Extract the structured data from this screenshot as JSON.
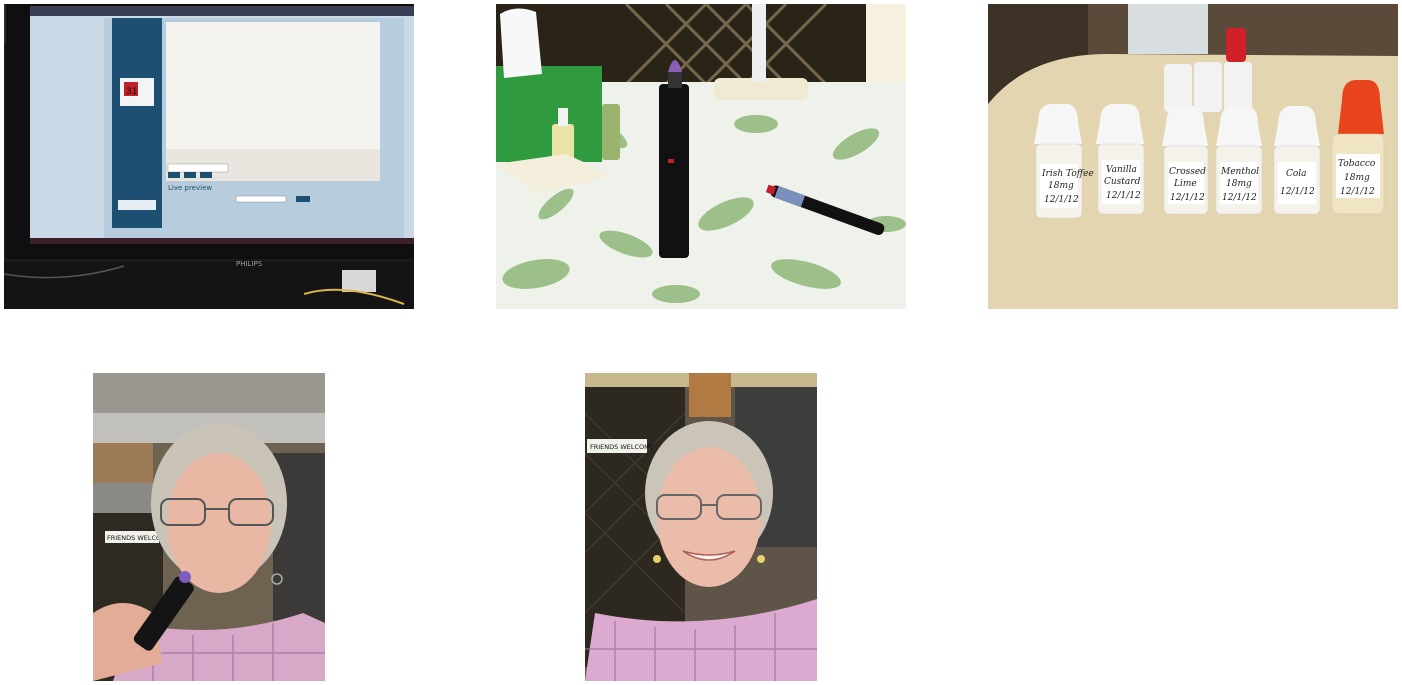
{
  "photos": [
    {
      "id": "monitor",
      "brand": "PHILIPS",
      "screen_heading": "Live preview",
      "screen_date": "31"
    },
    {
      "id": "ecig-table"
    },
    {
      "id": "liquid-bottles",
      "bottles": [
        {
          "line1": "Irish Toffee",
          "line2": "18mg",
          "line3": "12/1/12"
        },
        {
          "line1": "Vanilla",
          "line2": "Custard",
          "line3": "12/1/12"
        },
        {
          "line1": "Crossed",
          "line2": "Lime",
          "line3": "12/1/12"
        },
        {
          "line1": "Menthol",
          "line2": "18mg",
          "line3": "12/1/12"
        },
        {
          "line1": "Cola",
          "line2": "12/1/12",
          "line3": ""
        },
        {
          "line1": "Tobacco",
          "line2": "18mg",
          "line3": "12/1/12"
        }
      ]
    },
    {
      "id": "woman-vaping",
      "sign": "FRIENDS WELCOME"
    },
    {
      "id": "woman-smiling",
      "sign": "FRIENDS WELCOME"
    }
  ]
}
